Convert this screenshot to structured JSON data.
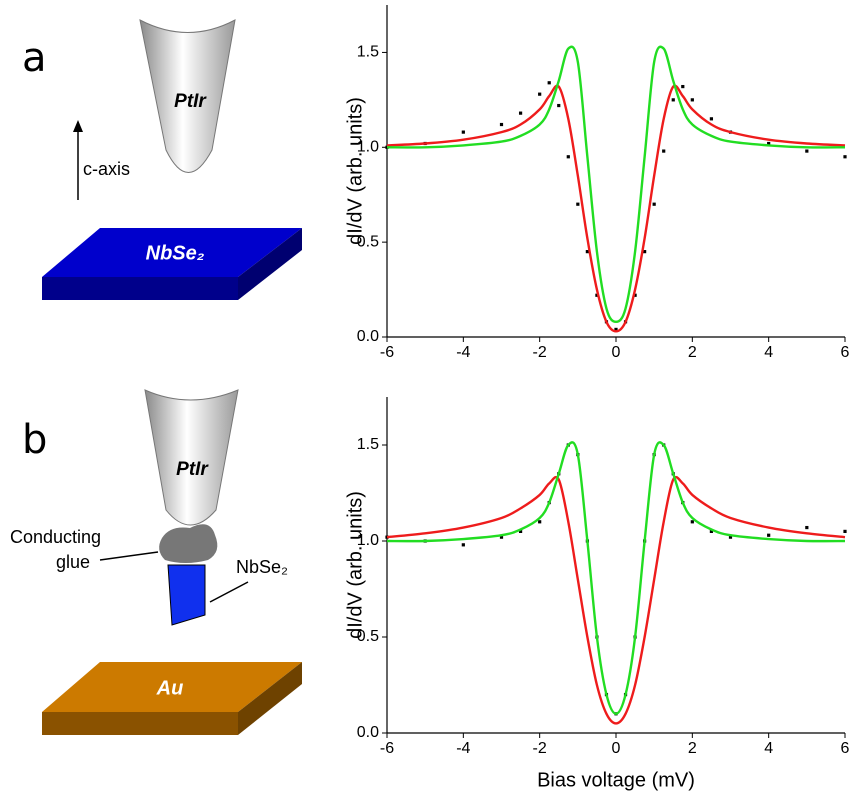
{
  "panels": [
    {
      "label": "a",
      "tip": "PtIr",
      "axis_label": "c-axis",
      "sample": "NbSe₂"
    },
    {
      "label": "b",
      "tip": "PtIr",
      "glue": [
        "Conducting",
        "glue"
      ],
      "flake": "NbSe₂",
      "substrate": "Au"
    }
  ],
  "chart_data": [
    {
      "type": "line",
      "ylabel": "dI/dV (arb. units)",
      "x": [
        -6,
        -5,
        -4,
        -3,
        -2.5,
        -2,
        -1.75,
        -1.5,
        -1.25,
        -1,
        -0.75,
        -0.5,
        -0.25,
        0,
        0.25,
        0.5,
        0.75,
        1,
        1.25,
        1.5,
        1.75,
        2,
        2.5,
        3,
        4,
        5,
        6
      ],
      "series": [
        {
          "style": "dots",
          "color": "#000000",
          "values": [
            1.0,
            1.02,
            1.08,
            1.12,
            1.18,
            1.28,
            1.34,
            1.22,
            0.95,
            0.7,
            0.45,
            0.22,
            0.08,
            0.04,
            0.08,
            0.22,
            0.45,
            0.7,
            0.98,
            1.25,
            1.32,
            1.25,
            1.15,
            1.08,
            1.02,
            0.98,
            0.95
          ]
        },
        {
          "style": "line",
          "color": "#ee1c1c",
          "values": [
            1.01,
            1.02,
            1.04,
            1.08,
            1.12,
            1.2,
            1.27,
            1.32,
            1.15,
            0.85,
            0.52,
            0.25,
            0.08,
            0.03,
            0.08,
            0.25,
            0.52,
            0.85,
            1.15,
            1.32,
            1.27,
            1.2,
            1.12,
            1.08,
            1.04,
            1.02,
            1.01
          ]
        },
        {
          "style": "line",
          "color": "#22dd22",
          "values": [
            1.0,
            1.0,
            1.01,
            1.03,
            1.06,
            1.12,
            1.2,
            1.35,
            1.52,
            1.45,
            0.95,
            0.45,
            0.15,
            0.08,
            0.15,
            0.45,
            0.95,
            1.45,
            1.52,
            1.35,
            1.2,
            1.12,
            1.06,
            1.03,
            1.01,
            1.0,
            1.0
          ]
        }
      ],
      "xlim": [
        -6,
        6
      ],
      "xticks": [
        -6,
        -4,
        -2,
        0,
        2,
        4,
        6
      ],
      "ylim": [
        0,
        1.75
      ],
      "yticks": [
        {
          "value": 0,
          "label": "0.0"
        },
        {
          "value": 0.5,
          "label": "0.5"
        },
        {
          "value": 1,
          "label": "1.0"
        },
        {
          "value": 1.5,
          "label": "1.5"
        }
      ]
    },
    {
      "type": "line",
      "ylabel": "dI/dV (arb. units)",
      "xlabel": "Bias voltage (mV)",
      "x": [
        -6,
        -5,
        -4,
        -3,
        -2.5,
        -2,
        -1.75,
        -1.5,
        -1.25,
        -1,
        -0.75,
        -0.5,
        -0.25,
        0,
        0.25,
        0.5,
        0.75,
        1,
        1.25,
        1.5,
        1.75,
        2,
        2.5,
        3,
        4,
        5,
        6
      ],
      "series": [
        {
          "style": "dots",
          "color": "#000000",
          "values": [
            1.02,
            1.0,
            0.98,
            1.02,
            1.05,
            1.1,
            1.2,
            1.35,
            1.5,
            1.45,
            1.0,
            0.5,
            0.2,
            0.1,
            0.2,
            0.5,
            1.0,
            1.45,
            1.5,
            1.35,
            1.2,
            1.1,
            1.05,
            1.02,
            1.03,
            1.07,
            1.05
          ]
        },
        {
          "style": "line",
          "color": "#ee1c1c",
          "values": [
            1.02,
            1.04,
            1.07,
            1.12,
            1.17,
            1.24,
            1.3,
            1.32,
            1.1,
            0.8,
            0.5,
            0.25,
            0.1,
            0.05,
            0.1,
            0.25,
            0.5,
            0.8,
            1.1,
            1.32,
            1.3,
            1.24,
            1.17,
            1.12,
            1.07,
            1.04,
            1.02
          ]
        },
        {
          "style": "line",
          "color": "#22dd22",
          "values": [
            1.0,
            1.0,
            1.01,
            1.03,
            1.06,
            1.12,
            1.2,
            1.35,
            1.5,
            1.45,
            1.0,
            0.5,
            0.2,
            0.1,
            0.2,
            0.5,
            1.0,
            1.45,
            1.5,
            1.35,
            1.2,
            1.12,
            1.06,
            1.03,
            1.01,
            1.0,
            1.0
          ]
        }
      ],
      "xlim": [
        -6,
        6
      ],
      "xticks": [
        -6,
        -4,
        -2,
        0,
        2,
        4,
        6
      ],
      "ylim": [
        0,
        1.75
      ],
      "yticks": [
        {
          "value": 0,
          "label": "0.0"
        },
        {
          "value": 0.5,
          "label": "0.5"
        },
        {
          "value": 1,
          "label": "1.0"
        },
        {
          "value": 1.5,
          "label": "1.5"
        }
      ]
    }
  ]
}
